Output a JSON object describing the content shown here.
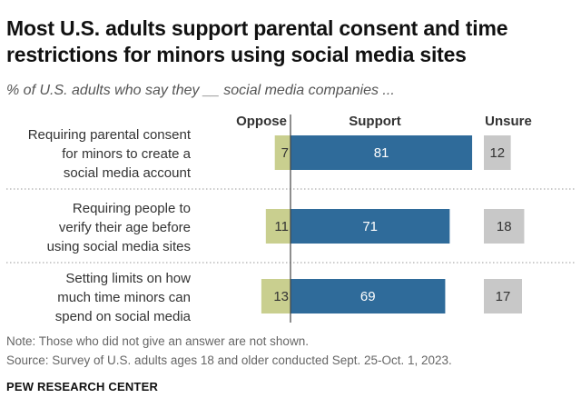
{
  "title": "Most U.S. adults support parental consent and time restrictions for minors using social media sites",
  "subtitle": "% of U.S. adults who say they __ social media companies ...",
  "note": "Note: Those who did not give an answer are not shown.",
  "source": "Source: Survey of U.S. adults ages 18 and older conducted Sept. 25-Oct. 1, 2023.",
  "brand": "PEW RESEARCH CENTER",
  "colors": {
    "oppose": "#c9cf8f",
    "support": "#2f6b9a",
    "unsure": "#c8c8c8"
  },
  "chart_data": {
    "type": "bar",
    "categories": [
      [
        "Requiring parental consent",
        "for minors to create a",
        "social media account"
      ],
      [
        "Requiring people to",
        "verify their age before",
        "using social media sites"
      ],
      [
        "Setting limits on how",
        "much time minors can",
        "spend on social media"
      ]
    ],
    "columns": [
      "Oppose",
      "Support",
      "Unsure"
    ],
    "series": [
      {
        "name": "Oppose",
        "values": [
          7,
          11,
          13
        ]
      },
      {
        "name": "Support",
        "values": [
          81,
          71,
          69
        ]
      },
      {
        "name": "Unsure",
        "values": [
          12,
          18,
          17
        ]
      }
    ]
  }
}
